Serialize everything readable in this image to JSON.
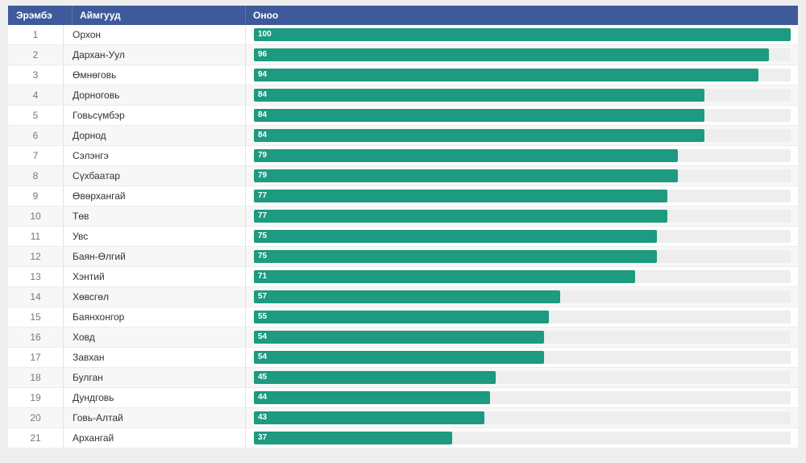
{
  "header": {
    "rank": "Эрэмбэ",
    "name": "Аймгууд",
    "score": "Оноо"
  },
  "colors": {
    "header_bg": "#3f5a9a",
    "bar": "#1d9a80",
    "track": "#eeeeee"
  },
  "chart_data": {
    "type": "bar",
    "title": "",
    "xlabel": "Оноо",
    "ylabel": "Аймгууд",
    "ylim": [
      0,
      100
    ],
    "ranks": [
      "1",
      "2",
      "3",
      "4",
      "5",
      "6",
      "7",
      "8",
      "9",
      "10",
      "11",
      "12",
      "13",
      "14",
      "15",
      "16",
      "17",
      "18",
      "19",
      "20",
      "21"
    ],
    "categories": [
      "Орхон",
      "Дархан-Уул",
      "Өмнөговь",
      "Дорноговь",
      "Говьсүмбэр",
      "Дорнод",
      "Сэлэнгэ",
      "Сүхбаатар",
      "Өвөрхангай",
      "Төв",
      "Увс",
      "Баян-Өлгий",
      "Хэнтий",
      "Хөвсгөл",
      "Баянхонгор",
      "Ховд",
      "Завхан",
      "Булган",
      "Дундговь",
      "Говь-Алтай",
      "Архангай"
    ],
    "values": [
      100,
      96,
      94,
      84,
      84,
      84,
      79,
      79,
      77,
      77,
      75,
      75,
      71,
      57,
      55,
      54,
      54,
      45,
      44,
      43,
      37
    ]
  }
}
